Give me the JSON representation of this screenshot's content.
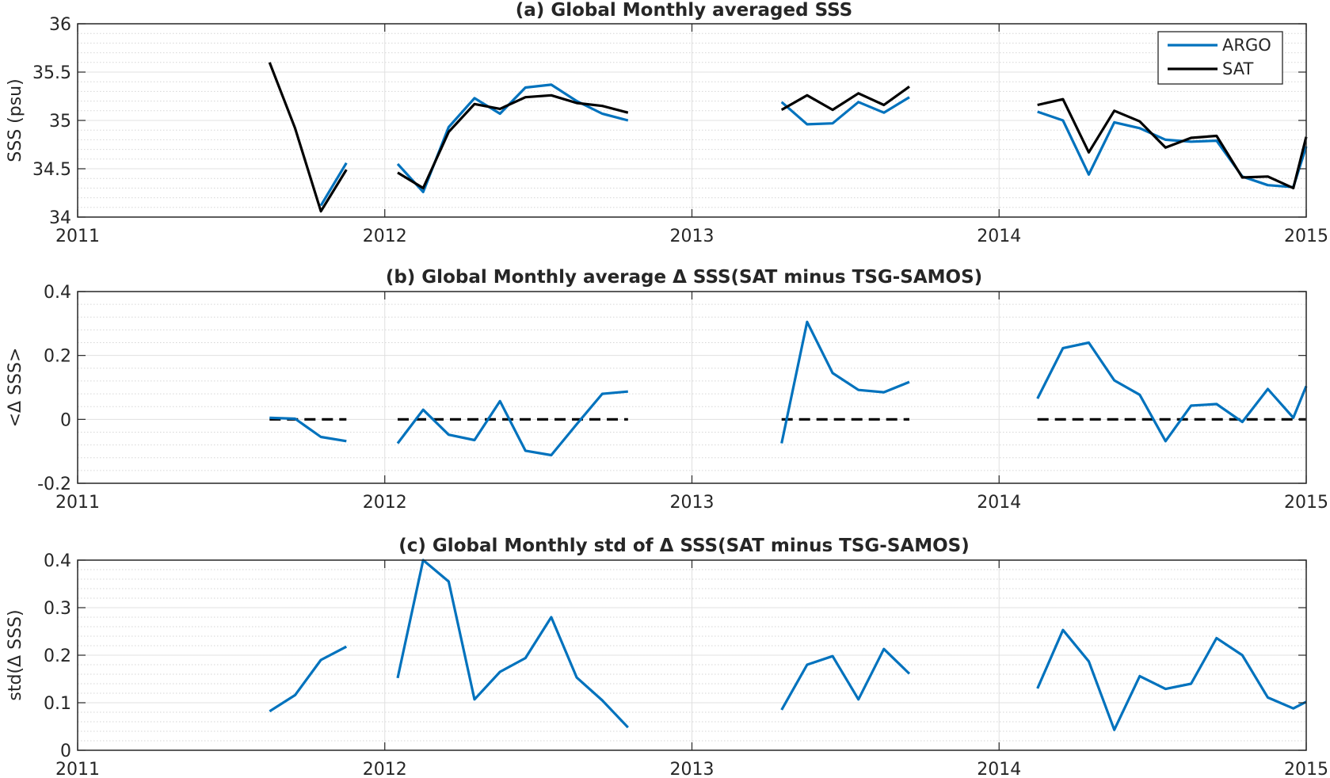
{
  "chart_data": [
    {
      "type": "line",
      "title": "(a) Global Monthly averaged SSS",
      "xlabel": "",
      "ylabel": "SSS (psu)",
      "xlim": [
        2011,
        2015
      ],
      "ylim": [
        34,
        36
      ],
      "xticks": [
        2011,
        2012,
        2013,
        2014,
        2015
      ],
      "xtick_labels": [
        "2011",
        "2012",
        "2013",
        "2014",
        "2015"
      ],
      "yticks": [
        34,
        34.5,
        35,
        35.5,
        36
      ],
      "ytick_labels": [
        "34",
        "34.5",
        "35",
        "35.5",
        "36"
      ],
      "grid": true,
      "legend": "top-right",
      "series": [
        {
          "name": "ARGO",
          "color": "#0072bd",
          "dashed": false,
          "segments": [
            [
              [
                2011.875,
                34.56
              ],
              [
                2011.792,
                34.12
              ]
            ],
            [
              [
                2012.042,
                34.55
              ],
              [
                2012.125,
                34.26
              ],
              [
                2012.208,
                34.93
              ],
              [
                2012.292,
                35.23
              ],
              [
                2012.375,
                35.07
              ],
              [
                2012.458,
                35.34
              ],
              [
                2012.542,
                35.37
              ],
              [
                2012.625,
                35.2
              ],
              [
                2012.708,
                35.07
              ],
              [
                2012.792,
                35.0
              ]
            ],
            [
              [
                2013.292,
                35.19
              ],
              [
                2013.375,
                34.96
              ],
              [
                2013.458,
                34.97
              ],
              [
                2013.542,
                35.19
              ],
              [
                2013.625,
                35.08
              ],
              [
                2013.708,
                35.24
              ]
            ],
            [
              [
                2014.125,
                35.09
              ],
              [
                2014.208,
                35.0
              ],
              [
                2014.292,
                34.44
              ],
              [
                2014.375,
                34.98
              ],
              [
                2014.458,
                34.92
              ],
              [
                2014.542,
                34.8
              ],
              [
                2014.625,
                34.78
              ],
              [
                2014.708,
                34.79
              ],
              [
                2014.792,
                34.42
              ],
              [
                2014.875,
                34.33
              ],
              [
                2014.958,
                34.31
              ],
              [
                2015.0,
                34.73
              ]
            ]
          ]
        },
        {
          "name": "SAT",
          "color": "#000000",
          "dashed": false,
          "segments": [
            [
              [
                2011.625,
                35.6
              ],
              [
                2011.708,
                34.92
              ],
              [
                2011.792,
                34.06
              ],
              [
                2011.875,
                34.49
              ]
            ],
            [
              [
                2012.042,
                34.46
              ],
              [
                2012.125,
                34.3
              ],
              [
                2012.208,
                34.88
              ],
              [
                2012.292,
                35.17
              ],
              [
                2012.375,
                35.12
              ],
              [
                2012.458,
                35.24
              ],
              [
                2012.542,
                35.26
              ],
              [
                2012.625,
                35.18
              ],
              [
                2012.708,
                35.15
              ],
              [
                2012.792,
                35.08
              ]
            ],
            [
              [
                2013.292,
                35.11
              ],
              [
                2013.375,
                35.26
              ],
              [
                2013.458,
                35.11
              ],
              [
                2013.542,
                35.28
              ],
              [
                2013.625,
                35.16
              ],
              [
                2013.708,
                35.35
              ]
            ],
            [
              [
                2014.125,
                35.16
              ],
              [
                2014.208,
                35.22
              ],
              [
                2014.292,
                34.67
              ],
              [
                2014.375,
                35.1
              ],
              [
                2014.458,
                34.99
              ],
              [
                2014.542,
                34.72
              ],
              [
                2014.625,
                34.82
              ],
              [
                2014.708,
                34.84
              ],
              [
                2014.792,
                34.41
              ],
              [
                2014.875,
                34.42
              ],
              [
                2014.958,
                34.3
              ],
              [
                2015.0,
                34.83
              ]
            ]
          ]
        }
      ]
    },
    {
      "type": "line",
      "title": "(b) Global Monthly average Δ SSS(SAT minus TSG-SAMOS)",
      "xlabel": "",
      "ylabel": "<Δ SSS>",
      "xlim": [
        2011,
        2015
      ],
      "ylim": [
        -0.2,
        0.4
      ],
      "xticks": [
        2011,
        2012,
        2013,
        2014,
        2015
      ],
      "xtick_labels": [
        "2011",
        "2012",
        "2013",
        "2014",
        "2015"
      ],
      "yticks": [
        -0.2,
        0,
        0.2,
        0.4
      ],
      "ytick_labels": [
        "-0.2",
        "0",
        "0.2",
        "0.4"
      ],
      "grid": true,
      "series": [
        {
          "color": "#000000",
          "dashed": true,
          "segments": [
            [
              [
                2011.625,
                0
              ],
              [
                2011.875,
                0
              ]
            ],
            [
              [
                2012.042,
                0
              ],
              [
                2012.792,
                0
              ]
            ],
            [
              [
                2013.292,
                0
              ],
              [
                2013.708,
                0
              ]
            ],
            [
              [
                2014.125,
                0
              ],
              [
                2015.0,
                0
              ]
            ]
          ]
        },
        {
          "color": "#0072bd",
          "dashed": false,
          "segments": [
            [
              [
                2011.625,
                0.005
              ],
              [
                2011.708,
                0.002
              ],
              [
                2011.792,
                -0.055
              ],
              [
                2011.875,
                -0.068
              ]
            ],
            [
              [
                2012.042,
                -0.075
              ],
              [
                2012.125,
                0.03
              ],
              [
                2012.208,
                -0.048
              ],
              [
                2012.292,
                -0.065
              ],
              [
                2012.375,
                0.057
              ],
              [
                2012.458,
                -0.098
              ],
              [
                2012.542,
                -0.112
              ],
              [
                2012.625,
                -0.015
              ],
              [
                2012.708,
                0.08
              ],
              [
                2012.792,
                0.087
              ]
            ],
            [
              [
                2013.292,
                -0.075
              ],
              [
                2013.375,
                0.305
              ],
              [
                2013.458,
                0.145
              ],
              [
                2013.542,
                0.092
              ],
              [
                2013.625,
                0.085
              ],
              [
                2013.708,
                0.117
              ]
            ],
            [
              [
                2014.125,
                0.065
              ],
              [
                2014.208,
                0.223
              ],
              [
                2014.292,
                0.24
              ],
              [
                2014.375,
                0.122
              ],
              [
                2014.458,
                0.077
              ],
              [
                2014.542,
                -0.068
              ],
              [
                2014.625,
                0.043
              ],
              [
                2014.708,
                0.048
              ],
              [
                2014.792,
                -0.008
              ],
              [
                2014.875,
                0.095
              ],
              [
                2014.958,
                0.005
              ],
              [
                2015.0,
                0.104
              ]
            ]
          ]
        }
      ]
    },
    {
      "type": "line",
      "title": "(c) Global Monthly std of Δ SSS(SAT minus TSG-SAMOS)",
      "xlabel": "",
      "ylabel": "std(Δ SSS)",
      "xlim": [
        2011,
        2015
      ],
      "ylim": [
        0,
        0.4
      ],
      "xticks": [
        2011,
        2012,
        2013,
        2014,
        2015
      ],
      "xtick_labels": [
        "2011",
        "2012",
        "2013",
        "2014",
        "2015"
      ],
      "yticks": [
        0,
        0.1,
        0.2,
        0.3,
        0.4
      ],
      "ytick_labels": [
        "0",
        "0.1",
        "0.2",
        "0.3",
        "0.4"
      ],
      "grid": true,
      "series": [
        {
          "color": "#0072bd",
          "dashed": false,
          "segments": [
            [
              [
                2011.625,
                0.082
              ],
              [
                2011.708,
                0.116
              ],
              [
                2011.792,
                0.19
              ],
              [
                2011.875,
                0.218
              ]
            ],
            [
              [
                2012.042,
                0.152
              ],
              [
                2012.125,
                0.4
              ],
              [
                2012.208,
                0.355
              ],
              [
                2012.292,
                0.107
              ],
              [
                2012.375,
                0.165
              ],
              [
                2012.458,
                0.194
              ],
              [
                2012.542,
                0.28
              ],
              [
                2012.625,
                0.153
              ],
              [
                2012.708,
                0.105
              ],
              [
                2012.792,
                0.048
              ]
            ],
            [
              [
                2013.292,
                0.085
              ],
              [
                2013.375,
                0.18
              ],
              [
                2013.458,
                0.198
              ],
              [
                2013.542,
                0.107
              ],
              [
                2013.625,
                0.213
              ],
              [
                2013.708,
                0.161
              ]
            ],
            [
              [
                2014.125,
                0.13
              ],
              [
                2014.208,
                0.253
              ],
              [
                2014.292,
                0.187
              ],
              [
                2014.375,
                0.043
              ],
              [
                2014.458,
                0.156
              ],
              [
                2014.542,
                0.129
              ],
              [
                2014.625,
                0.14
              ],
              [
                2014.708,
                0.236
              ],
              [
                2014.792,
                0.2
              ],
              [
                2014.875,
                0.111
              ],
              [
                2014.958,
                0.088
              ],
              [
                2015.0,
                0.102
              ]
            ]
          ]
        }
      ]
    }
  ]
}
